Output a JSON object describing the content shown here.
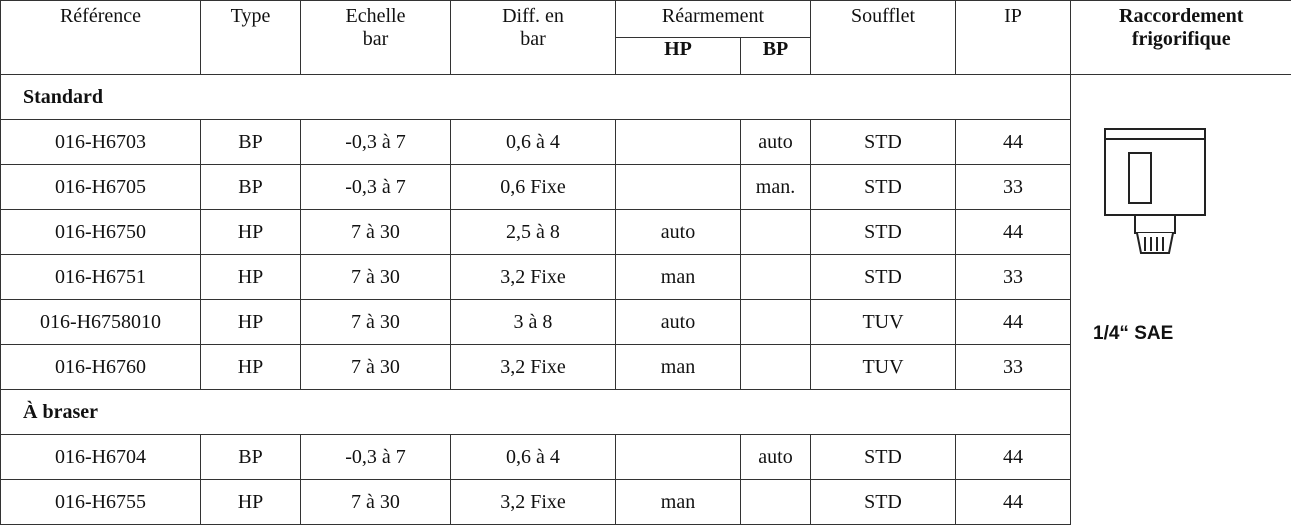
{
  "table": {
    "header": {
      "reference": "Référence",
      "type": "Type",
      "scale": "Echelle",
      "scale_unit": "bar",
      "diff": "Diff. en",
      "diff_unit": "bar",
      "reset": "Réarmement",
      "reset_hp": "HP",
      "reset_bp": "BP",
      "bellows": "Soufflet",
      "ip": "IP",
      "connection": "Raccordement",
      "connection_2": "frigorifique"
    },
    "groups": [
      {
        "name": "Standard",
        "rows": [
          [
            "016-H6703",
            "BP",
            "-0,3 à 7",
            "0,6 à 4",
            null,
            "auto",
            "STD",
            "44"
          ],
          [
            "016-H6705",
            "BP",
            "-0,3 à 7",
            "0,6 Fixe",
            null,
            "man.",
            "STD",
            "33"
          ],
          [
            "016-H6750",
            "HP",
            "7 à 30",
            "2,5 à 8",
            "auto",
            null,
            "STD",
            "44"
          ],
          [
            "016-H6751",
            "HP",
            "7 à 30",
            "3,2 Fixe",
            "man",
            null,
            "STD",
            "33"
          ],
          [
            "016-H6758010",
            "HP",
            "7 à 30",
            "3 à 8",
            "auto",
            null,
            "TUV",
            "44"
          ],
          [
            "016-H6760",
            "HP",
            "7 à 30",
            "3,2 Fixe",
            "man",
            null,
            "TUV",
            "33"
          ]
        ]
      },
      {
        "name": "À braser",
        "rows": [
          [
            "016-H6704",
            "BP",
            "-0,3 à 7",
            "0,6 à 4",
            null,
            "auto",
            "STD",
            "44"
          ],
          [
            "016-H6755",
            "HP",
            "7 à 30",
            "3,2 Fixe",
            "man",
            null,
            "STD",
            "44"
          ]
        ]
      }
    ],
    "connection_label": "1/4“ SAE"
  }
}
